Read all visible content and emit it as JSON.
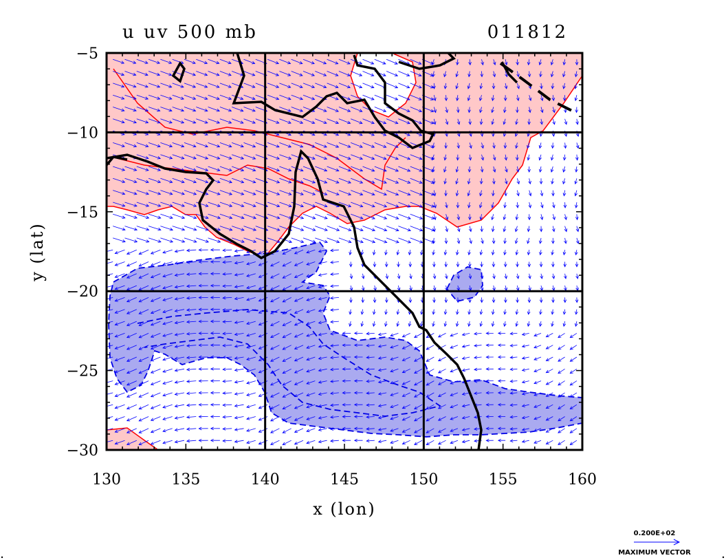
{
  "chart_data": {
    "type": "contour",
    "title_left": "u  uv  500  mb",
    "title_right": "011812",
    "xlabel": "x (lon)",
    "ylabel": "y (lat)",
    "xlim": [
      130,
      160
    ],
    "ylim": [
      -30,
      -5
    ],
    "x_ticks": [
      "130",
      "135",
      "140",
      "145",
      "150",
      "155",
      "160"
    ],
    "y_ticks": [
      "−5",
      "−10",
      "−15",
      "−20",
      "−25",
      "−30"
    ],
    "gridlines_x": [
      140,
      150
    ],
    "gridlines_y": [
      -10,
      -20
    ],
    "positive_color": "#ff0000",
    "positive_fill": "#ffc8c8",
    "negative_color": "#0000e6",
    "negative_fill": "#aaaaf0",
    "vector_color": "#0000ff",
    "reference_vector": {
      "magnitude": "0.200E+02",
      "label": "MAXIMUM VECTOR"
    }
  }
}
